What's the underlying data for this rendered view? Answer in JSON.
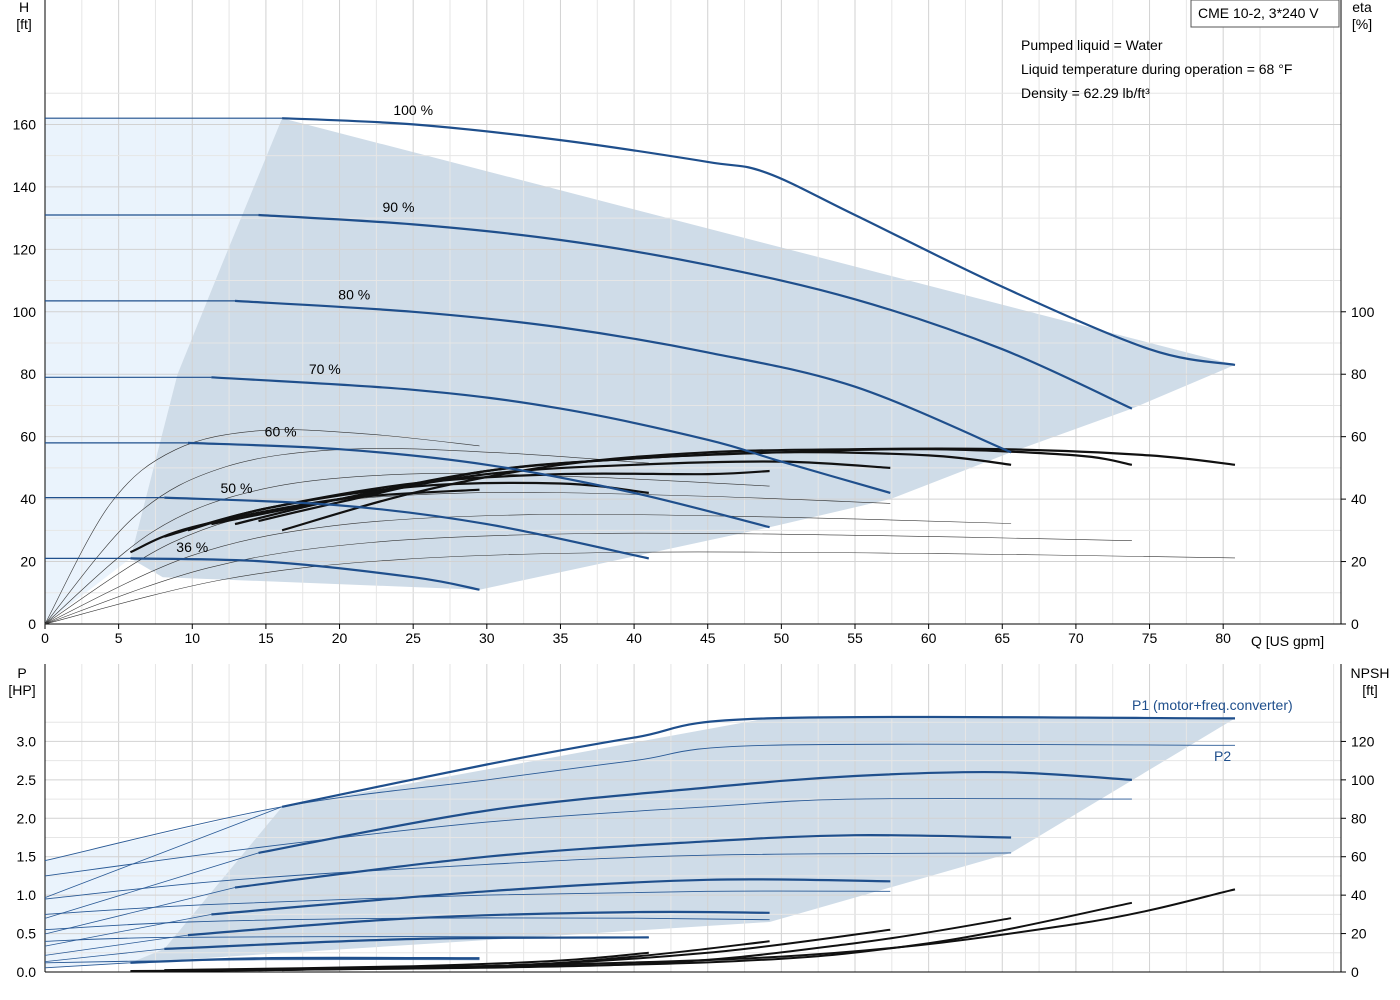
{
  "chart_data": [
    {
      "type": "line",
      "panel": "head",
      "title_box": "CME 10-2, 3*240 V",
      "notes": [
        "Pumped liquid = Water",
        "Liquid temperature during operation = 68 °F",
        "Density = 62.29 lb/ft³"
      ],
      "ylabel": [
        "H",
        "[ft]"
      ],
      "y2label": [
        "eta",
        "[%]"
      ],
      "xlabel": "Q [US gpm]",
      "xlim": [
        0,
        88
      ],
      "x_ticks": [
        0,
        5,
        10,
        15,
        20,
        25,
        30,
        35,
        40,
        45,
        50,
        55,
        60,
        65,
        70,
        75,
        80
      ],
      "ylim": [
        0,
        172
      ],
      "y_ticks": [
        0,
        20,
        40,
        60,
        80,
        100,
        120,
        140,
        160
      ],
      "y2_ticks": [
        0,
        20,
        40,
        60,
        80,
        100
      ],
      "grid": true,
      "colors": {
        "curve": "#1f4f8c",
        "band": "#cfdce8",
        "band_light": "#eaf3fc",
        "eff": "#111111",
        "grid": "#d2d2d2"
      },
      "speed_curves": [
        {
          "label": "100 %",
          "label_at": [
            25,
            163
          ],
          "points": [
            [
              0,
              162
            ],
            [
              16.1,
              162
            ],
            [
              25,
              160
            ],
            [
              35,
              155
            ],
            [
              45,
              148
            ],
            [
              49,
              144.5
            ],
            [
              55,
              131
            ],
            [
              65,
              108
            ],
            [
              75,
              88
            ],
            [
              80.8,
              83
            ]
          ]
        },
        {
          "label": "90 %",
          "label_at": [
            24,
            132
          ],
          "points": [
            [
              0,
              131
            ],
            [
              14.5,
              131
            ],
            [
              25,
              128
            ],
            [
              35,
              123
            ],
            [
              45,
              115
            ],
            [
              55,
              104
            ],
            [
              65,
              88
            ],
            [
              73.8,
              69
            ]
          ]
        },
        {
          "label": "80 %",
          "label_at": [
            21,
            104
          ],
          "points": [
            [
              0,
              103.5
            ],
            [
              12.9,
              103.5
            ],
            [
              25,
              100
            ],
            [
              35,
              95
            ],
            [
              45,
              87
            ],
            [
              55,
              76
            ],
            [
              65.6,
              55
            ]
          ]
        },
        {
          "label": "70 %",
          "label_at": [
            19,
            80
          ],
          "points": [
            [
              0,
              79
            ],
            [
              11.3,
              79
            ],
            [
              25,
              75
            ],
            [
              35,
              69
            ],
            [
              45,
              59
            ],
            [
              50,
              52
            ],
            [
              57.4,
              42
            ]
          ]
        },
        {
          "label": "60 %",
          "label_at": [
            16,
            60
          ],
          "points": [
            [
              0,
              58
            ],
            [
              9.7,
              58
            ],
            [
              20,
              56
            ],
            [
              30,
              51
            ],
            [
              40,
              42
            ],
            [
              49.2,
              31
            ]
          ]
        },
        {
          "label": "50 %",
          "label_at": [
            13,
            42
          ],
          "points": [
            [
              0,
              40.5
            ],
            [
              8.1,
              40.5
            ],
            [
              20,
              38
            ],
            [
              30,
              32
            ],
            [
              41,
              21
            ]
          ]
        },
        {
          "label": "36 %",
          "label_at": [
            10,
            23
          ],
          "points": [
            [
              0,
              21
            ],
            [
              5.8,
              21
            ],
            [
              15,
              20
            ],
            [
              25,
              15
            ],
            [
              29.5,
              11
            ]
          ]
        }
      ],
      "operating_range": [
        [
          16.1,
          162
        ],
        [
          12,
          115
        ],
        [
          9,
          80
        ],
        [
          5.8,
          21
        ],
        [
          8,
          15
        ],
        [
          29.5,
          11
        ],
        [
          49.2,
          31
        ],
        [
          57.4,
          40
        ],
        [
          65.6,
          55
        ],
        [
          73.8,
          69
        ],
        [
          80.8,
          83
        ]
      ],
      "eff_bold": [
        {
          "points": [
            [
              5.8,
              23
            ],
            [
              10,
              31
            ],
            [
              20,
              40
            ],
            [
              29.5,
              43
            ]
          ]
        },
        {
          "points": [
            [
              8.1,
              28
            ],
            [
              15,
              37
            ],
            [
              25,
              44
            ],
            [
              35,
              45
            ],
            [
              41,
              42
            ]
          ]
        },
        {
          "points": [
            [
              9.7,
              30
            ],
            [
              15,
              37
            ],
            [
              25,
              45
            ],
            [
              35,
              48
            ],
            [
              45,
              48
            ],
            [
              49.2,
              49
            ]
          ]
        },
        {
          "points": [
            [
              11.3,
              32
            ],
            [
              20,
              40
            ],
            [
              30,
              48
            ],
            [
              40,
              51
            ],
            [
              50,
              52
            ],
            [
              57.4,
              50
            ]
          ]
        },
        {
          "points": [
            [
              12.9,
              32
            ],
            [
              20,
              40
            ],
            [
              30,
              49
            ],
            [
              40,
              53
            ],
            [
              50,
              55
            ],
            [
              60,
              54
            ],
            [
              65.6,
              51
            ]
          ]
        },
        {
          "points": [
            [
              14.5,
              33
            ],
            [
              20,
              39
            ],
            [
              30,
              49
            ],
            [
              40,
              53
            ],
            [
              50,
              55
            ],
            [
              60,
              56
            ],
            [
              70,
              54
            ],
            [
              73.8,
              51
            ]
          ]
        },
        {
          "points": [
            [
              16.1,
              30
            ],
            [
              25,
              42
            ],
            [
              35,
              51
            ],
            [
              45,
              55
            ],
            [
              55,
              56
            ],
            [
              65,
              56
            ],
            [
              75,
              54
            ],
            [
              80.8,
              51
            ]
          ]
        }
      ],
      "eff_thin_peaks": [
        23,
        29,
        35,
        42,
        48,
        56,
        62
      ]
    },
    {
      "type": "line",
      "panel": "power_npsh",
      "ylabel": [
        "P",
        "[HP]"
      ],
      "y2label": [
        "NPSH",
        "[ft]"
      ],
      "ylim": [
        0,
        3.5
      ],
      "y_ticks": [
        0.0,
        0.5,
        1.0,
        1.5,
        2.0,
        2.5,
        3.0
      ],
      "y2_ticks": [
        0,
        20,
        40,
        60,
        80,
        100,
        120
      ],
      "xlim": [
        0,
        88
      ],
      "x_ticks": [
        0,
        5,
        10,
        15,
        20,
        25,
        30,
        35,
        40,
        45,
        50,
        55,
        60,
        65,
        70,
        75,
        80
      ],
      "series_labels": {
        "p1": "P1 (motor+freq.converter)",
        "p2": "P2"
      },
      "p1_curves": [
        {
          "points": [
            [
              16.1,
              2.15
            ],
            [
              30,
              2.7
            ],
            [
              40,
              3.05
            ],
            [
              49,
              3.3
            ],
            [
              80.8,
              3.3
            ]
          ]
        },
        {
          "points": [
            [
              14.5,
              1.55
            ],
            [
              30,
              2.1
            ],
            [
              45,
              2.4
            ],
            [
              55,
              2.55
            ],
            [
              65,
              2.6
            ],
            [
              73.8,
              2.5
            ]
          ]
        },
        {
          "points": [
            [
              12.9,
              1.1
            ],
            [
              30,
              1.5
            ],
            [
              45,
              1.7
            ],
            [
              55,
              1.78
            ],
            [
              65.6,
              1.75
            ]
          ]
        },
        {
          "points": [
            [
              11.3,
              0.75
            ],
            [
              30,
              1.05
            ],
            [
              45,
              1.2
            ],
            [
              57.4,
              1.18
            ]
          ]
        },
        {
          "points": [
            [
              9.7,
              0.48
            ],
            [
              25,
              0.7
            ],
            [
              40,
              0.78
            ],
            [
              49.2,
              0.77
            ]
          ]
        },
        {
          "points": [
            [
              8.1,
              0.3
            ],
            [
              25,
              0.43
            ],
            [
              41,
              0.45
            ]
          ]
        },
        {
          "points": [
            [
              5.8,
              0.12
            ],
            [
              15,
              0.18
            ],
            [
              29.5,
              0.18
            ]
          ]
        }
      ],
      "p2_curves": [
        {
          "points": [
            [
              0,
              1.45
            ],
            [
              16.1,
              2.15
            ],
            [
              30,
              2.5
            ],
            [
              40,
              2.75
            ],
            [
              49,
              2.95
            ],
            [
              80.8,
              2.95
            ]
          ]
        },
        {
          "points": [
            [
              0,
              1.25
            ],
            [
              14.5,
              1.62
            ],
            [
              30,
              1.95
            ],
            [
              45,
              2.15
            ],
            [
              55,
              2.25
            ],
            [
              73.8,
              2.25
            ]
          ]
        },
        {
          "points": [
            [
              0,
              0.95
            ],
            [
              12.9,
              1.2
            ],
            [
              30,
              1.4
            ],
            [
              45,
              1.52
            ],
            [
              65.6,
              1.55
            ]
          ]
        },
        {
          "points": [
            [
              0,
              0.75
            ],
            [
              11.3,
              0.88
            ],
            [
              30,
              1.0
            ],
            [
              45,
              1.05
            ],
            [
              57.4,
              1.05
            ]
          ]
        },
        {
          "points": [
            [
              0,
              0.55
            ],
            [
              9.7,
              0.65
            ],
            [
              25,
              0.7
            ],
            [
              40,
              0.7
            ],
            [
              49.2,
              0.68
            ]
          ]
        },
        {
          "points": [
            [
              0,
              0.4
            ],
            [
              8.1,
              0.45
            ],
            [
              25,
              0.46
            ],
            [
              41,
              0.45
            ]
          ]
        },
        {
          "points": [
            [
              0,
              0.12
            ],
            [
              5.8,
              0.14
            ],
            [
              15,
              0.16
            ],
            [
              29.5,
              0.16
            ]
          ]
        }
      ],
      "operating_range": [
        [
          16.1,
          2.15
        ],
        [
          49,
          3.3
        ],
        [
          80.8,
          3.3
        ],
        [
          65.6,
          1.55
        ],
        [
          49.2,
          0.65
        ],
        [
          5.8,
          0.12
        ],
        [
          8.1,
          0.3
        ]
      ],
      "npsh_curves": [
        {
          "points": [
            [
              5.8,
              0.5
            ],
            [
              15,
              1
            ],
            [
              25,
              2
            ],
            [
              29.5,
              3
            ]
          ]
        },
        {
          "points": [
            [
              8.1,
              1
            ],
            [
              25,
              3
            ],
            [
              35,
              6
            ],
            [
              41,
              10
            ]
          ]
        },
        {
          "points": [
            [
              9.7,
              1
            ],
            [
              30,
              3
            ],
            [
              40,
              8
            ],
            [
              49.2,
              16
            ]
          ]
        },
        {
          "points": [
            [
              11.3,
              1
            ],
            [
              30,
              3
            ],
            [
              45,
              10
            ],
            [
              57.4,
              22
            ]
          ]
        },
        {
          "points": [
            [
              12.9,
              1
            ],
            [
              40,
              4
            ],
            [
              55,
              15
            ],
            [
              65.6,
              28
            ]
          ]
        },
        {
          "points": [
            [
              14.5,
              1
            ],
            [
              45,
              5
            ],
            [
              60,
              15
            ],
            [
              73.8,
              36
            ]
          ]
        },
        {
          "points": [
            [
              16.1,
              1
            ],
            [
              50,
              8
            ],
            [
              70,
              25
            ],
            [
              80.8,
              43
            ]
          ]
        }
      ],
      "npsh_ylim": [
        0,
        140
      ]
    }
  ]
}
